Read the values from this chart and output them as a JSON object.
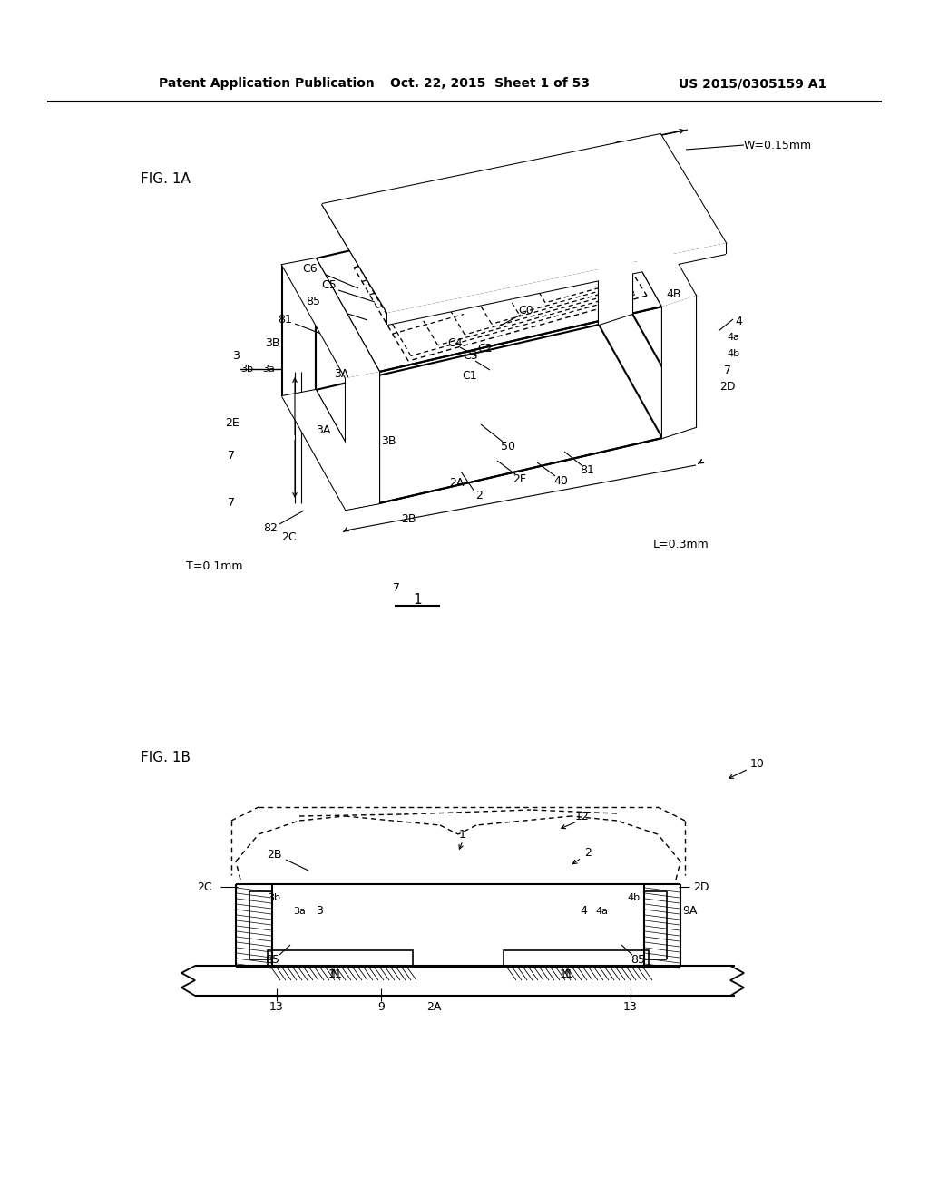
{
  "bg": "#ffffff",
  "lc": "#000000",
  "header_left": "Patent Application Publication",
  "header_center": "Oct. 22, 2015  Sheet 1 of 53",
  "header_right": "US 2015/0305159 A1",
  "fig1a": "FIG. 1A",
  "fig1b": "FIG. 1B"
}
